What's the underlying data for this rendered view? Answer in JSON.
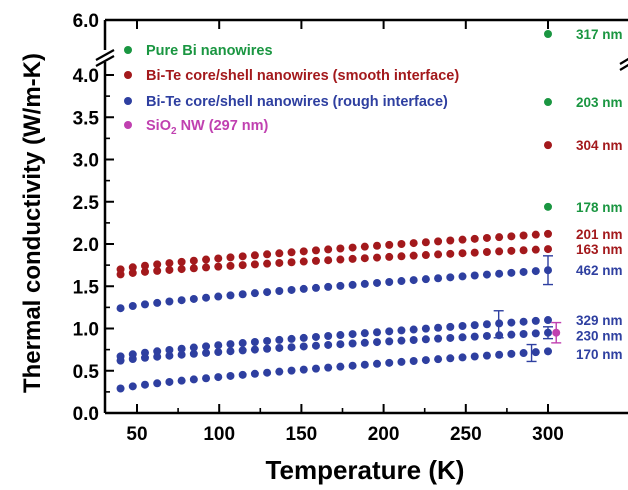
{
  "chart_data": {
    "type": "scatter",
    "title": "",
    "xlabel": "Temperature (K)",
    "ylabel": "Thermal conductivity (W/m-K)",
    "xlim": [
      30,
      310
    ],
    "ylim": [
      0,
      4.2
    ],
    "y_axis_break": {
      "lower_top": 4.0,
      "upper_label": "6.0"
    },
    "x_ticks": [
      "50",
      "100",
      "150",
      "200",
      "250",
      "300"
    ],
    "y_ticks": [
      "0.0",
      "0.5",
      "1.0",
      "1.5",
      "2.0",
      "2.5",
      "3.0",
      "3.5",
      "4.0"
    ],
    "y_tick_upper": "6.0",
    "grid": false,
    "legend_position": "top-left",
    "colors": {
      "pure_bi": "#1a9641",
      "smooth": "#a3191c",
      "rough": "#2e3fa0",
      "sio2": "#c040b0"
    },
    "legend": [
      {
        "label": "Pure Bi nanowires",
        "color_key": "pure_bi"
      },
      {
        "label": "Bi-Te core/shell nanowires (smooth interface)",
        "color_key": "smooth"
      },
      {
        "label": "Bi-Te core/shell nanowires (rough interface)",
        "color_key": "rough"
      },
      {
        "label_main": "SiO",
        "label_sub": "2",
        "label_rest": " NW (297 nm)",
        "color_key": "sio2"
      }
    ],
    "series": [
      {
        "name": "Pure Bi nanowires",
        "color_key": "pure_bi",
        "points": [
          {
            "x": 300,
            "y": 5.9,
            "broken": true,
            "label": "317 nm"
          },
          {
            "x": 300,
            "y": 3.68,
            "label": "203 nm"
          },
          {
            "x": 300,
            "y": 2.44,
            "label": "178 nm"
          }
        ]
      },
      {
        "name": "Bi-Te core/shell nanowires (smooth interface)",
        "color_key": "smooth",
        "curves": [
          {
            "label": "304 nm",
            "points": [
              {
                "x": 300,
                "y": 3.17
              }
            ]
          },
          {
            "label": "201 nm",
            "x_start": 40,
            "x_end": 300,
            "y_start": 1.7,
            "y_end": 2.12
          },
          {
            "label": "163 nm",
            "x_start": 40,
            "x_end": 300,
            "y_start": 1.64,
            "y_end": 1.94
          }
        ]
      },
      {
        "name": "Bi-Te core/shell nanowires (rough interface)",
        "color_key": "rough",
        "curves": [
          {
            "label": "462 nm",
            "x_start": 40,
            "x_end": 300,
            "y_start": 1.24,
            "y_end": 1.69,
            "error_bar": {
              "x": 300,
              "y": 1.69,
              "err": 0.17
            }
          },
          {
            "label": "329 nm",
            "x_start": 40,
            "x_end": 300,
            "y_start": 0.67,
            "y_end": 1.1,
            "error_bar": {
              "x": 270,
              "y": 1.05,
              "err": 0.16
            }
          },
          {
            "label": "230 nm",
            "x_start": 40,
            "x_end": 300,
            "y_start": 0.62,
            "y_end": 0.95,
            "error_bar": {
              "x": 300,
              "y": 0.95,
              "err": 0.07
            }
          },
          {
            "label": "170 nm",
            "x_start": 40,
            "x_end": 300,
            "y_start": 0.29,
            "y_end": 0.73,
            "error_bar": {
              "x": 290,
              "y": 0.71,
              "err": 0.1
            }
          }
        ]
      },
      {
        "name": "SiO2 NW (297 nm)",
        "color_key": "sio2",
        "points": [
          {
            "x": 305,
            "y": 0.95,
            "err": 0.12
          }
        ]
      }
    ]
  }
}
